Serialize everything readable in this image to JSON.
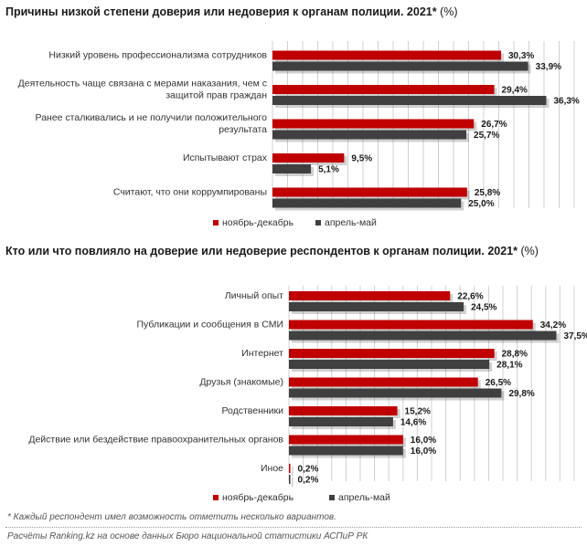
{
  "colors": {
    "series1": "#c00000",
    "series2": "#404040",
    "grid": "#d0d0d0"
  },
  "note": "* Каждый респондент имел возможность отметить несколько вариантов.",
  "source": "Расчёты Ranking.kz на основе данных Бюро национальной статистики АСПиР РК",
  "chart_data": [
    {
      "type": "bar",
      "orientation": "horizontal",
      "title": "Причины низкой степени доверия или недоверия к органам полиции. 2021*",
      "title_unit": "(%)",
      "categories": [
        [
          "Низкий уровень профессионализма сотрудников"
        ],
        [
          "Деятельность чаще связана с мерами наказания, чем с",
          "защитой прав граждан"
        ],
        [
          "Ранее сталкивались и не получили положительного",
          "результата"
        ],
        [
          "Испытывают страх"
        ],
        [
          "Считают, что они коррумпированы"
        ]
      ],
      "series": [
        {
          "name": "ноябрь-декабрь",
          "values": [
            30.3,
            29.4,
            26.7,
            9.5,
            25.8
          ],
          "labels": [
            "30,3%",
            "29,4%",
            "26,7%",
            "9,5%",
            "25,8%"
          ]
        },
        {
          "name": "апрель-май",
          "values": [
            33.9,
            36.3,
            25.7,
            5.1,
            25.0
          ],
          "labels": [
            "33,9%",
            "36,3%",
            "25,7%",
            "5,1%",
            "25,0%"
          ]
        }
      ],
      "xlim": [
        0,
        40
      ],
      "grid": true,
      "legend_position": "bottom"
    },
    {
      "type": "bar",
      "orientation": "horizontal",
      "title": "Кто или что повлияло на доверие или недоверие респондентов к органам полиции. 2021*",
      "title_unit": "(%)",
      "categories": [
        [
          "Личный опыт"
        ],
        [
          "Публикации и сообщения в СМИ"
        ],
        [
          "Интернет"
        ],
        [
          "Друзья (знакомые)"
        ],
        [
          "Родственники"
        ],
        [
          "Действие или бездействие правоохранительных органов"
        ],
        [
          "Иное"
        ]
      ],
      "series": [
        {
          "name": "ноябрь-декабрь",
          "values": [
            22.6,
            34.2,
            28.8,
            26.5,
            15.2,
            16.0,
            0.2
          ],
          "labels": [
            "22,6%",
            "34,2%",
            "28,8%",
            "26,5%",
            "15,2%",
            "16,0%",
            "0,2%"
          ]
        },
        {
          "name": "апрель-май",
          "values": [
            24.5,
            37.5,
            28.1,
            29.8,
            14.6,
            16.0,
            0.2
          ],
          "labels": [
            "24,5%",
            "37,5%",
            "28,1%",
            "29,8%",
            "14,6%",
            "16,0%",
            "0,2%"
          ]
        }
      ],
      "xlim": [
        0,
        40
      ],
      "grid": true,
      "legend_position": "bottom"
    }
  ]
}
